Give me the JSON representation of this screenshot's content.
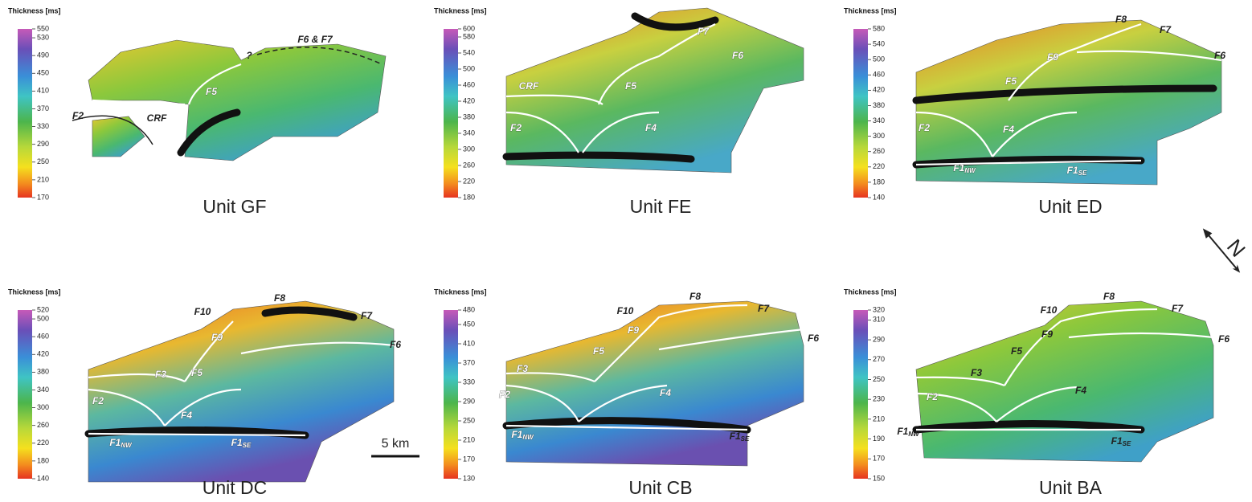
{
  "north": "N",
  "scale_bar": "5 km",
  "panels": [
    {
      "title": "Unit GF",
      "colorbar": {
        "label": "Thickness [ms]",
        "ticks": [
          550,
          530,
          490,
          450,
          410,
          370,
          330,
          290,
          250,
          210,
          170
        ]
      },
      "labels": [
        {
          "text": "F2"
        },
        {
          "text": "CRF"
        },
        {
          "text": "F5"
        },
        {
          "text": "?"
        },
        {
          "text": "F6 & F7"
        }
      ]
    },
    {
      "title": "Unit FE",
      "colorbar": {
        "label": "Thickness [ms]",
        "ticks": [
          600,
          580,
          540,
          500,
          460,
          420,
          380,
          340,
          300,
          260,
          220,
          180
        ]
      },
      "labels": [
        {
          "text": "F7"
        },
        {
          "text": "F6"
        },
        {
          "text": "CRF"
        },
        {
          "text": "F5"
        },
        {
          "text": "F2"
        },
        {
          "text": "F4"
        }
      ]
    },
    {
      "title": "Unit ED",
      "colorbar": {
        "label": "Thickness [ms]",
        "ticks": [
          580,
          540,
          500,
          460,
          420,
          380,
          340,
          300,
          260,
          220,
          180,
          140
        ]
      },
      "labels": [
        {
          "text": "F8"
        },
        {
          "text": "F7"
        },
        {
          "text": "F9"
        },
        {
          "text": "F6"
        },
        {
          "text": "F5"
        },
        {
          "text": "F2"
        },
        {
          "text": "F4"
        },
        {
          "text": "F1",
          "sub": "NW"
        },
        {
          "text": "F1",
          "sub": "SE"
        }
      ]
    },
    {
      "title": "Unit DC",
      "colorbar": {
        "label": "Thickness [ms]",
        "ticks": [
          520,
          500,
          460,
          420,
          380,
          340,
          300,
          260,
          220,
          180,
          140
        ]
      },
      "labels": [
        {
          "text": "F8"
        },
        {
          "text": "F10"
        },
        {
          "text": "F7"
        },
        {
          "text": "F9"
        },
        {
          "text": "F6"
        },
        {
          "text": "F3"
        },
        {
          "text": "F5"
        },
        {
          "text": "F2"
        },
        {
          "text": "F4"
        },
        {
          "text": "F1",
          "sub": "NW"
        },
        {
          "text": "F1",
          "sub": "SE"
        }
      ]
    },
    {
      "title": "Unit CB",
      "colorbar": {
        "label": "Thickness [ms]",
        "ticks": [
          480,
          450,
          410,
          370,
          330,
          290,
          250,
          210,
          170,
          130
        ]
      },
      "labels": [
        {
          "text": "F8"
        },
        {
          "text": "F10"
        },
        {
          "text": "F7"
        },
        {
          "text": "F9"
        },
        {
          "text": "F5"
        },
        {
          "text": "F6"
        },
        {
          "text": "F3"
        },
        {
          "text": "F2"
        },
        {
          "text": "F4"
        },
        {
          "text": "F1",
          "sub": "NW"
        },
        {
          "text": "F1",
          "sub": "SE"
        }
      ]
    },
    {
      "title": "Unit BA",
      "colorbar": {
        "label": "Thickness [ms]",
        "ticks": [
          320,
          310,
          290,
          270,
          250,
          230,
          210,
          190,
          170,
          150
        ]
      },
      "labels": [
        {
          "text": "F8"
        },
        {
          "text": "F10"
        },
        {
          "text": "F7"
        },
        {
          "text": "F9"
        },
        {
          "text": "F5"
        },
        {
          "text": "F6"
        },
        {
          "text": "F3"
        },
        {
          "text": "F2"
        },
        {
          "text": "F4"
        },
        {
          "text": "F1",
          "sub": "NW"
        },
        {
          "text": "F1",
          "sub": "SE"
        }
      ]
    }
  ]
}
